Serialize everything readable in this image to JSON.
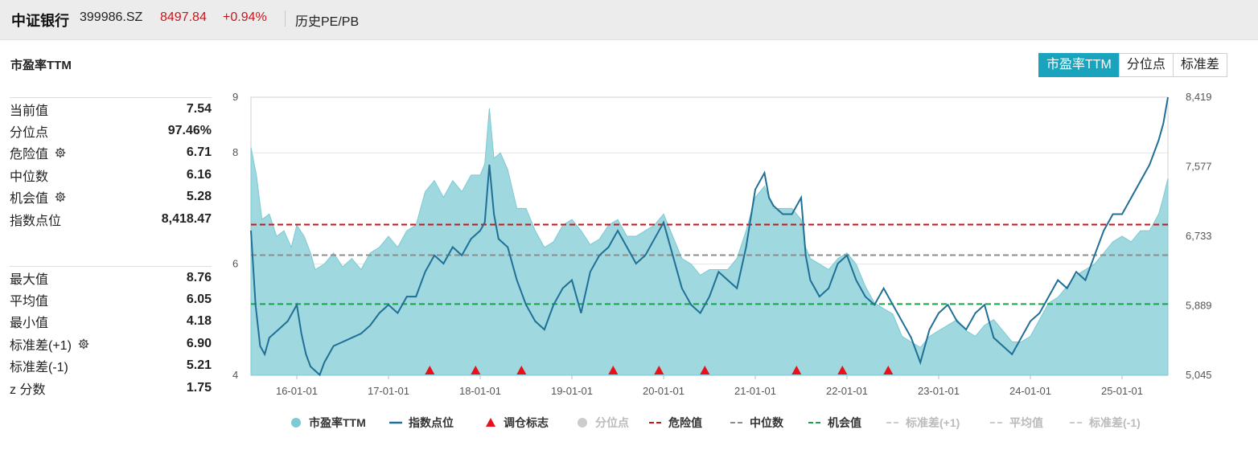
{
  "header": {
    "name": "中证银行",
    "code": "399986.SZ",
    "price": "8497.84",
    "change": "+0.94%",
    "link": "历史PE/PB"
  },
  "section_title": "市盈率TTM",
  "tabs": [
    {
      "label": "市盈率TTM",
      "active": true
    },
    {
      "label": "分位点",
      "active": false
    },
    {
      "label": "标准差",
      "active": false
    }
  ],
  "stats_top": [
    {
      "label": "当前值",
      "value": "7.54",
      "gear": false
    },
    {
      "label": "分位点",
      "value": "97.46%",
      "gear": false
    },
    {
      "label": "危险值",
      "value": "6.71",
      "gear": true
    },
    {
      "label": "中位数",
      "value": "6.16",
      "gear": false
    },
    {
      "label": "机会值",
      "value": "5.28",
      "gear": true
    },
    {
      "label": "指数点位",
      "value": "8,418.47",
      "gear": false
    }
  ],
  "stats_bottom": [
    {
      "label": "最大值",
      "value": "8.76",
      "gear": false
    },
    {
      "label": "平均值",
      "value": "6.05",
      "gear": false
    },
    {
      "label": "最小值",
      "value": "4.18",
      "gear": false
    },
    {
      "label": "标准差(+1)",
      "value": "6.90",
      "gear": true
    },
    {
      "label": "标准差(-1)",
      "value": "5.21",
      "gear": true
    },
    {
      "label": "z 分数",
      "value": "1.75",
      "gear": false
    }
  ],
  "colors": {
    "pe_fill": "#9fd8df",
    "pe_stroke": "#7ccad4",
    "index_line": "#1f6f96",
    "danger": "#c8161d",
    "median": "#8c8c8c",
    "opportunity": "#16a34a",
    "marker": "#e8101a",
    "accent": "#1aa3bd"
  },
  "chart_data": {
    "type": "area",
    "x_ticks": [
      "16-01-01",
      "17-01-01",
      "18-01-01",
      "19-01-01",
      "20-01-01",
      "21-01-01",
      "22-01-01",
      "23-01-01",
      "24-01-01",
      "25-01-01"
    ],
    "x_range": [
      2015.5,
      2025.5
    ],
    "y_left": {
      "ticks": [
        "9",
        "8",
        "6",
        "4"
      ],
      "range": [
        4,
        9
      ]
    },
    "y_right": {
      "ticks": [
        "8,419",
        "7,577",
        "6,733",
        "5,889",
        "5,045"
      ],
      "range": [
        5045,
        8419
      ]
    },
    "reference_lines": [
      {
        "name": "危险值",
        "value": 6.71
      },
      {
        "name": "中位数",
        "value": 6.16
      },
      {
        "name": "机会值",
        "value": 5.28
      }
    ],
    "markers_x": [
      2017.45,
      2017.95,
      2018.45,
      2019.45,
      2019.95,
      2020.45,
      2021.45,
      2021.95,
      2022.45
    ],
    "series": [
      {
        "name": "市盈率TTM",
        "axis": "left",
        "points": [
          [
            2015.5,
            8.1
          ],
          [
            2015.56,
            7.6
          ],
          [
            2015.62,
            6.8
          ],
          [
            2015.7,
            6.9
          ],
          [
            2015.78,
            6.5
          ],
          [
            2015.86,
            6.6
          ],
          [
            2015.94,
            6.3
          ],
          [
            2016.0,
            6.7
          ],
          [
            2016.08,
            6.5
          ],
          [
            2016.15,
            6.2
          ],
          [
            2016.2,
            5.9
          ],
          [
            2016.3,
            6.0
          ],
          [
            2016.4,
            6.2
          ],
          [
            2016.5,
            5.95
          ],
          [
            2016.6,
            6.1
          ],
          [
            2016.7,
            5.9
          ],
          [
            2016.8,
            6.2
          ],
          [
            2016.9,
            6.3
          ],
          [
            2017.0,
            6.5
          ],
          [
            2017.1,
            6.3
          ],
          [
            2017.2,
            6.6
          ],
          [
            2017.3,
            6.7
          ],
          [
            2017.4,
            7.3
          ],
          [
            2017.5,
            7.5
          ],
          [
            2017.6,
            7.2
          ],
          [
            2017.7,
            7.5
          ],
          [
            2017.8,
            7.3
          ],
          [
            2017.9,
            7.6
          ],
          [
            2018.0,
            7.6
          ],
          [
            2018.05,
            7.8
          ],
          [
            2018.1,
            8.8
          ],
          [
            2018.15,
            7.9
          ],
          [
            2018.22,
            8.0
          ],
          [
            2018.3,
            7.7
          ],
          [
            2018.4,
            7.0
          ],
          [
            2018.5,
            7.0
          ],
          [
            2018.6,
            6.6
          ],
          [
            2018.7,
            6.3
          ],
          [
            2018.8,
            6.4
          ],
          [
            2018.9,
            6.7
          ],
          [
            2019.0,
            6.8
          ],
          [
            2019.1,
            6.6
          ],
          [
            2019.2,
            6.35
          ],
          [
            2019.3,
            6.45
          ],
          [
            2019.4,
            6.7
          ],
          [
            2019.5,
            6.8
          ],
          [
            2019.6,
            6.5
          ],
          [
            2019.7,
            6.5
          ],
          [
            2019.8,
            6.6
          ],
          [
            2019.9,
            6.7
          ],
          [
            2020.0,
            6.9
          ],
          [
            2020.1,
            6.5
          ],
          [
            2020.2,
            6.1
          ],
          [
            2020.3,
            6.0
          ],
          [
            2020.4,
            5.8
          ],
          [
            2020.5,
            5.9
          ],
          [
            2020.6,
            5.9
          ],
          [
            2020.7,
            5.9
          ],
          [
            2020.8,
            6.1
          ],
          [
            2020.9,
            6.6
          ],
          [
            2021.0,
            7.2
          ],
          [
            2021.1,
            7.4
          ],
          [
            2021.15,
            7.2
          ],
          [
            2021.2,
            7.0
          ],
          [
            2021.3,
            7.0
          ],
          [
            2021.4,
            7.0
          ],
          [
            2021.5,
            6.8
          ],
          [
            2021.55,
            6.3
          ],
          [
            2021.6,
            6.1
          ],
          [
            2021.7,
            6.0
          ],
          [
            2021.8,
            5.9
          ],
          [
            2021.9,
            6.1
          ],
          [
            2022.0,
            6.2
          ],
          [
            2022.1,
            6.0
          ],
          [
            2022.2,
            5.6
          ],
          [
            2022.3,
            5.3
          ],
          [
            2022.4,
            5.2
          ],
          [
            2022.5,
            5.1
          ],
          [
            2022.6,
            4.7
          ],
          [
            2022.7,
            4.6
          ],
          [
            2022.8,
            4.5
          ],
          [
            2022.9,
            4.7
          ],
          [
            2023.0,
            4.8
          ],
          [
            2023.1,
            4.9
          ],
          [
            2023.2,
            5.0
          ],
          [
            2023.3,
            4.8
          ],
          [
            2023.4,
            4.7
          ],
          [
            2023.5,
            4.9
          ],
          [
            2023.6,
            5.0
          ],
          [
            2023.7,
            4.8
          ],
          [
            2023.8,
            4.6
          ],
          [
            2023.9,
            4.6
          ],
          [
            2024.0,
            4.7
          ],
          [
            2024.1,
            5.0
          ],
          [
            2024.2,
            5.3
          ],
          [
            2024.3,
            5.4
          ],
          [
            2024.4,
            5.6
          ],
          [
            2024.5,
            5.8
          ],
          [
            2024.6,
            5.9
          ],
          [
            2024.7,
            6.0
          ],
          [
            2024.8,
            6.2
          ],
          [
            2024.9,
            6.4
          ],
          [
            2025.0,
            6.5
          ],
          [
            2025.1,
            6.4
          ],
          [
            2025.2,
            6.6
          ],
          [
            2025.3,
            6.6
          ],
          [
            2025.4,
            6.9
          ],
          [
            2025.45,
            7.2
          ],
          [
            2025.5,
            7.54
          ]
        ]
      },
      {
        "name": "指数点位",
        "axis": "right",
        "points": [
          [
            2015.5,
            6800
          ],
          [
            2015.55,
            5900
          ],
          [
            2015.6,
            5400
          ],
          [
            2015.65,
            5300
          ],
          [
            2015.7,
            5500
          ],
          [
            2015.8,
            5600
          ],
          [
            2015.9,
            5700
          ],
          [
            2016.0,
            5900
          ],
          [
            2016.05,
            5550
          ],
          [
            2016.1,
            5300
          ],
          [
            2016.15,
            5150
          ],
          [
            2016.2,
            5100
          ],
          [
            2016.25,
            5050
          ],
          [
            2016.3,
            5200
          ],
          [
            2016.4,
            5400
          ],
          [
            2016.5,
            5450
          ],
          [
            2016.6,
            5500
          ],
          [
            2016.7,
            5550
          ],
          [
            2016.8,
            5650
          ],
          [
            2016.9,
            5800
          ],
          [
            2017.0,
            5900
          ],
          [
            2017.1,
            5800
          ],
          [
            2017.2,
            6000
          ],
          [
            2017.3,
            6000
          ],
          [
            2017.4,
            6300
          ],
          [
            2017.5,
            6500
          ],
          [
            2017.6,
            6400
          ],
          [
            2017.7,
            6600
          ],
          [
            2017.8,
            6500
          ],
          [
            2017.9,
            6700
          ],
          [
            2018.0,
            6800
          ],
          [
            2018.05,
            6900
          ],
          [
            2018.1,
            7600
          ],
          [
            2018.15,
            7000
          ],
          [
            2018.2,
            6700
          ],
          [
            2018.3,
            6600
          ],
          [
            2018.4,
            6200
          ],
          [
            2018.5,
            5900
          ],
          [
            2018.6,
            5700
          ],
          [
            2018.7,
            5600
          ],
          [
            2018.8,
            5900
          ],
          [
            2018.9,
            6100
          ],
          [
            2019.0,
            6200
          ],
          [
            2019.1,
            5800
          ],
          [
            2019.2,
            6300
          ],
          [
            2019.3,
            6500
          ],
          [
            2019.4,
            6600
          ],
          [
            2019.5,
            6800
          ],
          [
            2019.6,
            6600
          ],
          [
            2019.7,
            6400
          ],
          [
            2019.8,
            6500
          ],
          [
            2019.9,
            6700
          ],
          [
            2020.0,
            6900
          ],
          [
            2020.1,
            6500
          ],
          [
            2020.2,
            6100
          ],
          [
            2020.3,
            5900
          ],
          [
            2020.4,
            5800
          ],
          [
            2020.5,
            6000
          ],
          [
            2020.6,
            6300
          ],
          [
            2020.7,
            6200
          ],
          [
            2020.8,
            6100
          ],
          [
            2020.9,
            6600
          ],
          [
            2021.0,
            7300
          ],
          [
            2021.1,
            7500
          ],
          [
            2021.15,
            7200
          ],
          [
            2021.2,
            7100
          ],
          [
            2021.3,
            7000
          ],
          [
            2021.4,
            7000
          ],
          [
            2021.5,
            7200
          ],
          [
            2021.55,
            6500
          ],
          [
            2021.6,
            6200
          ],
          [
            2021.7,
            6000
          ],
          [
            2021.8,
            6100
          ],
          [
            2021.9,
            6400
          ],
          [
            2022.0,
            6500
          ],
          [
            2022.1,
            6200
          ],
          [
            2022.2,
            6000
          ],
          [
            2022.3,
            5900
          ],
          [
            2022.4,
            6100
          ],
          [
            2022.5,
            5900
          ],
          [
            2022.6,
            5700
          ],
          [
            2022.7,
            5500
          ],
          [
            2022.8,
            5200
          ],
          [
            2022.9,
            5600
          ],
          [
            2023.0,
            5800
          ],
          [
            2023.1,
            5900
          ],
          [
            2023.2,
            5700
          ],
          [
            2023.3,
            5600
          ],
          [
            2023.4,
            5800
          ],
          [
            2023.5,
            5900
          ],
          [
            2023.6,
            5500
          ],
          [
            2023.7,
            5400
          ],
          [
            2023.8,
            5300
          ],
          [
            2023.9,
            5500
          ],
          [
            2024.0,
            5700
          ],
          [
            2024.1,
            5800
          ],
          [
            2024.2,
            6000
          ],
          [
            2024.3,
            6200
          ],
          [
            2024.4,
            6100
          ],
          [
            2024.5,
            6300
          ],
          [
            2024.6,
            6200
          ],
          [
            2024.7,
            6500
          ],
          [
            2024.8,
            6800
          ],
          [
            2024.9,
            7000
          ],
          [
            2025.0,
            7000
          ],
          [
            2025.1,
            7200
          ],
          [
            2025.2,
            7400
          ],
          [
            2025.3,
            7600
          ],
          [
            2025.4,
            7900
          ],
          [
            2025.45,
            8100
          ],
          [
            2025.5,
            8419
          ]
        ]
      }
    ],
    "legend": {
      "placement": "bottom",
      "items": [
        {
          "label": "市盈率TTM",
          "kind": "circle",
          "color": "#7ccad4",
          "enabled": true
        },
        {
          "label": "指数点位",
          "kind": "line",
          "color": "#1f6f96",
          "enabled": true
        },
        {
          "label": "调仓标志",
          "kind": "triangle",
          "color": "#e8101a",
          "enabled": true
        },
        {
          "label": "分位点",
          "kind": "circle",
          "color": "#cccccc",
          "enabled": false
        },
        {
          "label": "危险值",
          "kind": "dash",
          "color": "#c8161d",
          "enabled": true
        },
        {
          "label": "中位数",
          "kind": "dash",
          "color": "#8c8c8c",
          "enabled": true
        },
        {
          "label": "机会值",
          "kind": "dash",
          "color": "#16a34a",
          "enabled": true
        },
        {
          "label": "标准差(+1)",
          "kind": "dash",
          "color": "#cccccc",
          "enabled": false
        },
        {
          "label": "平均值",
          "kind": "dash",
          "color": "#cccccc",
          "enabled": false
        },
        {
          "label": "标准差(-1)",
          "kind": "dash",
          "color": "#cccccc",
          "enabled": false
        }
      ]
    }
  }
}
